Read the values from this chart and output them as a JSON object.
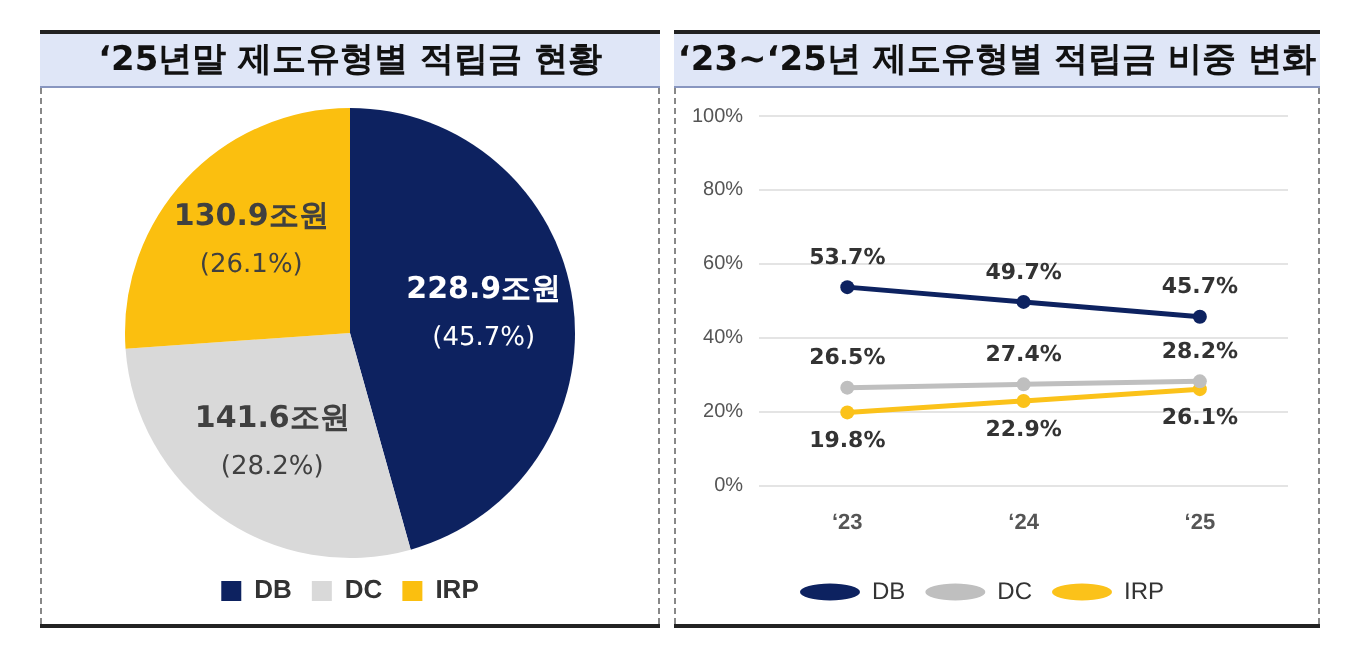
{
  "chart_data": [
    {
      "type": "pie",
      "title": "‘25년말 제도유형별 적립금 현황",
      "categories": [
        "DB",
        "DC",
        "IRP"
      ],
      "values": [
        228.9,
        141.6,
        130.9
      ],
      "colors": [
        "#0d2260",
        "#d9d9d9",
        "#fbbf0f"
      ],
      "value_labels": [
        "228.9조원\n(45.7%)",
        "141.6조원\n(28.2%)",
        "130.9조원\n(26.1%)"
      ],
      "legend": "bottom"
    },
    {
      "type": "line",
      "title": "‘23~‘25년 제도유형별 적립금 비중 변화",
      "categories": [
        "‘23",
        "‘24",
        "‘25"
      ],
      "series": [
        {
          "name": "DB",
          "color": "#0d2260",
          "values": [
            53.7,
            49.7,
            45.7
          ],
          "value_labels": [
            "53.7%",
            "49.7%",
            "45.7%"
          ]
        },
        {
          "name": "DC",
          "color": "#bfbfbf",
          "values": [
            26.5,
            27.4,
            28.2
          ],
          "value_labels": [
            "26.5%",
            "27.4%",
            "28.2%"
          ]
        },
        {
          "name": "IRP",
          "color": "#fbc21a",
          "values": [
            19.8,
            22.9,
            26.1
          ],
          "value_labels": [
            "19.8%",
            "22.9%",
            "26.1%"
          ]
        }
      ],
      "ylim": [
        0,
        100
      ],
      "yticks": [
        {
          "value": 0,
          "label": "0%"
        },
        {
          "value": 20,
          "label": "20%"
        },
        {
          "value": 40,
          "label": "40%"
        },
        {
          "value": 60,
          "label": "60%"
        },
        {
          "value": 80,
          "label": "80%"
        },
        {
          "value": 100,
          "label": "100%"
        }
      ],
      "grid": "y",
      "marker": "circle",
      "line_style": "solid",
      "legend": "bottom"
    }
  ]
}
